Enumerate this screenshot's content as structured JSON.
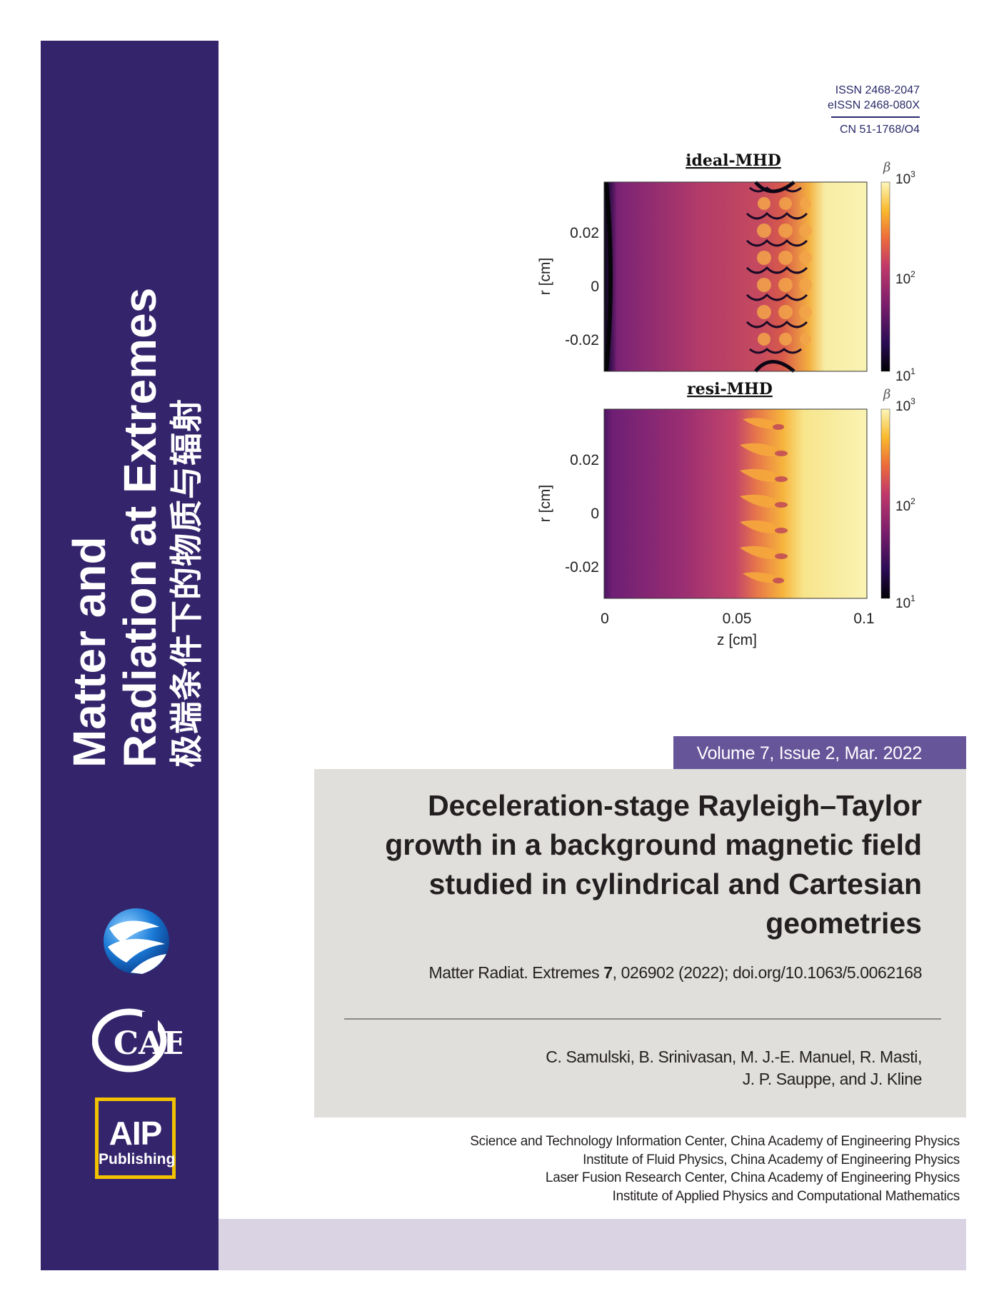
{
  "journal": {
    "title_line1": "Matter and",
    "title_line2": "Radiation at Extremes",
    "title_cn": "极端条件下的物质与辐射",
    "issn": "ISSN 2468-2047",
    "eissn": "eISSN 2468-080X",
    "cn": "CN 51-1768/O4",
    "volume": "Volume 7, Issue 2, Mar. 2022"
  },
  "figure": {
    "top_panel_title": "ideal-MHD",
    "bottom_panel_title": "resi-MHD",
    "ylabel": "r [cm]",
    "xlabel": "z [cm]",
    "colorbar_label": "β",
    "y_ticks": [
      "0.02",
      "0",
      "-0.02"
    ],
    "x_ticks": [
      "0",
      "0.05",
      "0.1"
    ],
    "cb_ticks": [
      "10",
      "10",
      "10"
    ],
    "cb_exps": [
      "3",
      "2",
      "1"
    ]
  },
  "article": {
    "title": "Deceleration-stage Rayleigh–Taylor growth in a background magnetic field studied in cylindrical and Cartesian geometries",
    "citation_prefix": "Matter Radiat. Extremes ",
    "citation_volume": "7",
    "citation_suffix": ", 026902 (2022); doi.org/10.1063/5.0062168",
    "authors_line1": "C. Samulski, B. Srinivasan, M. J.-E. Manuel, R. Masti,",
    "authors_line2": "J. P. Sauppe, and J. Kline"
  },
  "affiliations": [
    "Science and Technology Information Center, China Academy of Engineering Physics",
    "Institute of Fluid Physics, China Academy of Engineering Physics",
    "Laser Fusion Research Center, China Academy of Engineering Physics",
    "Institute of Applied Physics and Computational Mathematics"
  ],
  "logos": {
    "caep": "CAEP",
    "aip": "AIP",
    "aip_sub": "Publishing"
  },
  "colors": {
    "spine": "#33246b",
    "volume_band": "#67559a",
    "grey_box": "#e0dfdb",
    "bottom_band": "#d9d3e4",
    "aip_border": "#f2c200"
  }
}
